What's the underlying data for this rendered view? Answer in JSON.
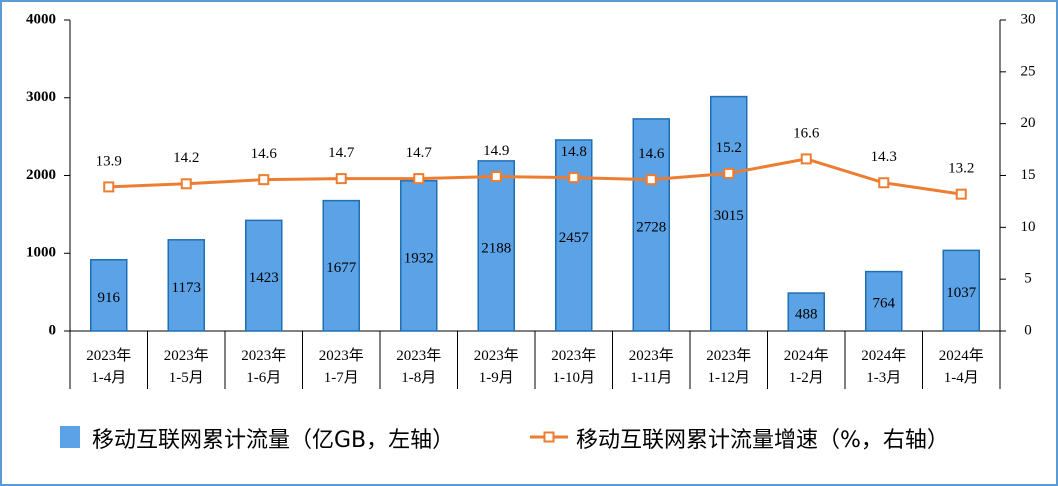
{
  "chart_data": {
    "type": "bar-line",
    "categories": [
      "2023年\n1-4月",
      "2023年\n1-5月",
      "2023年\n1-6月",
      "2023年\n1-7月",
      "2023年\n1-8月",
      "2023年\n1-9月",
      "2023年\n1-10月",
      "2023年\n1-11月",
      "2023年\n1-12月",
      "2024年\n1-2月",
      "2024年\n1-3月",
      "2024年\n1-4月"
    ],
    "series": [
      {
        "name": "移动互联网累计流量（亿GB，左轴）",
        "type": "bar",
        "color": "#5ba3e6",
        "values": [
          916,
          1173,
          1423,
          1677,
          1932,
          2188,
          2457,
          2728,
          3015,
          488,
          764,
          1037
        ]
      },
      {
        "name": "移动互联网累计流量增速（%，右轴）",
        "type": "line",
        "axis": "y2",
        "color": "#ed7d31",
        "values": [
          13.9,
          14.2,
          14.6,
          14.7,
          14.7,
          14.9,
          14.8,
          14.6,
          15.2,
          16.6,
          14.3,
          13.2
        ]
      }
    ],
    "ylim": [
      0,
      4000
    ],
    "yticks": [
      0,
      1000,
      2000,
      3000,
      4000
    ],
    "y2lim": [
      0,
      30
    ],
    "y2ticks": [
      0,
      5,
      10,
      15,
      20,
      25,
      30
    ],
    "legend": "bottom"
  }
}
